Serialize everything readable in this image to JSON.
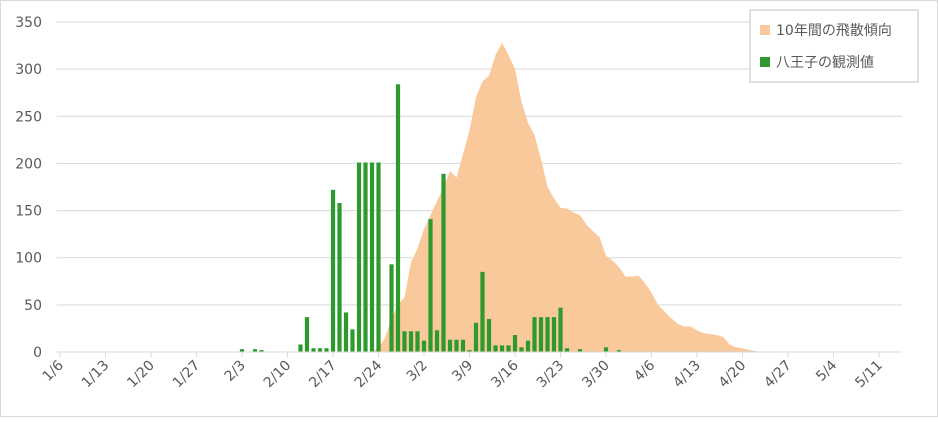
{
  "chart_data": {
    "type": "combo",
    "categories": [
      "1/6",
      null,
      null,
      null,
      null,
      null,
      null,
      "1/13",
      null,
      null,
      null,
      null,
      null,
      null,
      "1/20",
      null,
      null,
      null,
      null,
      null,
      null,
      "1/27",
      null,
      null,
      null,
      null,
      null,
      null,
      "2/3",
      null,
      null,
      null,
      null,
      null,
      null,
      "2/10",
      null,
      null,
      null,
      null,
      null,
      null,
      "2/17",
      null,
      null,
      null,
      null,
      null,
      null,
      "2/24",
      null,
      null,
      null,
      null,
      null,
      null,
      "3/2",
      null,
      null,
      null,
      null,
      null,
      null,
      "3/9",
      null,
      null,
      null,
      null,
      null,
      null,
      "3/16",
      null,
      null,
      null,
      null,
      null,
      null,
      "3/23",
      null,
      null,
      null,
      null,
      null,
      null,
      "3/30",
      null,
      null,
      null,
      null,
      null,
      null,
      "4/6",
      null,
      null,
      null,
      null,
      null,
      null,
      "4/13",
      null,
      null,
      null,
      null,
      null,
      null,
      "4/20",
      null,
      null,
      null,
      null,
      null,
      null,
      "4/27",
      null,
      null,
      null,
      null,
      null,
      null,
      "5/4",
      null,
      null,
      null,
      null,
      null,
      null,
      "5/11",
      null,
      null,
      null
    ],
    "series": [
      {
        "name": "10年間の飛散傾向",
        "type": "area",
        "color": "#f9c89b",
        "values": [
          0,
          0,
          0,
          0,
          0,
          0,
          0,
          0,
          0,
          0,
          0,
          0,
          0,
          0,
          0,
          0,
          0,
          0,
          0,
          0,
          0,
          0,
          0,
          0,
          0,
          0,
          0,
          0,
          0,
          0,
          0,
          0,
          0,
          0,
          0,
          0,
          0,
          0,
          0,
          0,
          0,
          0,
          0,
          0,
          0,
          0,
          0,
          0,
          0,
          5,
          15,
          35,
          50,
          58,
          95,
          110,
          130,
          145,
          160,
          175,
          192,
          185,
          210,
          235,
          270,
          287,
          293,
          315,
          328,
          315,
          300,
          265,
          243,
          230,
          205,
          175,
          163,
          153,
          152,
          148,
          145,
          135,
          128,
          122,
          102,
          97,
          90,
          80,
          80,
          81,
          73,
          63,
          50,
          43,
          36,
          30,
          27,
          27,
          23,
          20,
          19,
          18,
          16,
          8,
          5,
          4,
          2,
          1,
          0,
          0,
          0,
          0,
          0,
          0,
          0,
          0,
          0,
          0,
          0,
          0,
          0,
          0,
          0,
          0,
          0,
          0,
          0,
          0,
          0,
          0
        ]
      },
      {
        "name": "八王子の観測値",
        "type": "bar",
        "color": "#2e9a2e",
        "values": [
          0,
          0,
          0,
          0,
          0,
          0,
          0,
          0,
          0,
          0,
          0,
          0,
          0,
          0,
          0,
          0,
          0,
          0,
          0,
          0,
          0,
          0,
          0,
          0,
          0,
          0,
          0,
          0,
          3,
          0,
          3,
          2,
          0,
          0,
          0,
          0,
          0,
          8,
          37,
          4,
          4,
          4,
          172,
          158,
          42,
          24,
          201,
          201,
          201,
          201,
          0,
          93,
          284,
          22,
          22,
          22,
          12,
          141,
          23,
          189,
          13,
          13,
          13,
          2,
          31,
          85,
          35,
          7,
          7,
          7,
          18,
          5,
          12,
          37,
          37,
          37,
          37,
          47,
          4,
          0,
          3,
          0,
          0,
          0,
          5,
          0,
          2,
          0,
          0,
          0,
          0,
          0,
          0,
          0,
          0,
          0,
          0,
          0,
          0,
          0,
          0,
          0,
          0,
          0,
          0,
          0,
          0,
          0,
          0,
          0,
          0,
          0,
          0,
          0,
          0,
          0,
          0,
          0,
          0,
          0,
          0,
          0,
          0,
          0,
          0,
          0,
          0,
          0,
          0,
          0
        ]
      }
    ],
    "ylim": [
      0,
      350
    ],
    "yticks": [
      0,
      50,
      100,
      150,
      200,
      250,
      300,
      350
    ],
    "grid": true,
    "legend": "top-right"
  }
}
